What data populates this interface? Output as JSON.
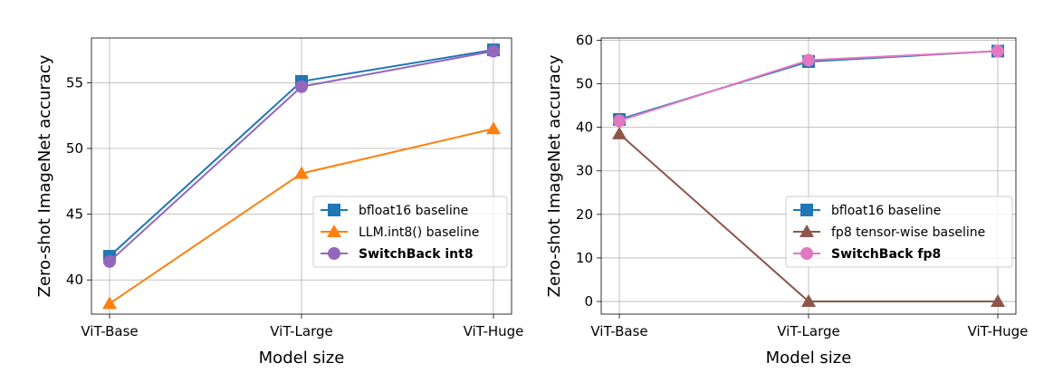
{
  "chart_data": [
    {
      "type": "line",
      "categories": [
        "ViT-Base",
        "ViT-Large",
        "ViT-Huge"
      ],
      "xlabel": "Model size",
      "ylabel": "Zero-shot ImageNet accuracy",
      "ylim": [
        37.4,
        58.4
      ],
      "yticks": [
        40,
        45,
        50,
        55
      ],
      "grid": true,
      "legend_position": "center-right",
      "series": [
        {
          "name": "bfloat16 baseline",
          "values": [
            41.8,
            55.1,
            57.5
          ],
          "color": "#1f77b4",
          "marker": "square",
          "bold": false
        },
        {
          "name": "LLM.int8() baseline",
          "values": [
            38.2,
            48.1,
            51.5
          ],
          "color": "#ff7f0e",
          "marker": "triangle",
          "bold": false
        },
        {
          "name": "SwitchBack int8",
          "values": [
            41.4,
            54.7,
            57.4
          ],
          "color": "#9467bd",
          "marker": "circle",
          "bold": true
        }
      ]
    },
    {
      "type": "line",
      "categories": [
        "ViT-Base",
        "ViT-Large",
        "ViT-Huge"
      ],
      "xlabel": "Model size",
      "ylabel": "Zero-shot ImageNet accuracy",
      "ylim": [
        -2.9,
        60.5
      ],
      "yticks": [
        0,
        10,
        20,
        30,
        40,
        50,
        60
      ],
      "grid": true,
      "legend_position": "lower-right",
      "series": [
        {
          "name": "bfloat16 baseline",
          "values": [
            41.8,
            55.1,
            57.5
          ],
          "color": "#1f77b4",
          "marker": "square",
          "bold": false
        },
        {
          "name": "fp8 tensor-wise baseline",
          "values": [
            38.5,
            0.0,
            0.0
          ],
          "color": "#8c564b",
          "marker": "triangle",
          "bold": false
        },
        {
          "name": "SwitchBack fp8",
          "values": [
            41.5,
            55.4,
            57.5
          ],
          "color": "#e377c2",
          "marker": "circle",
          "bold": true
        }
      ]
    }
  ]
}
